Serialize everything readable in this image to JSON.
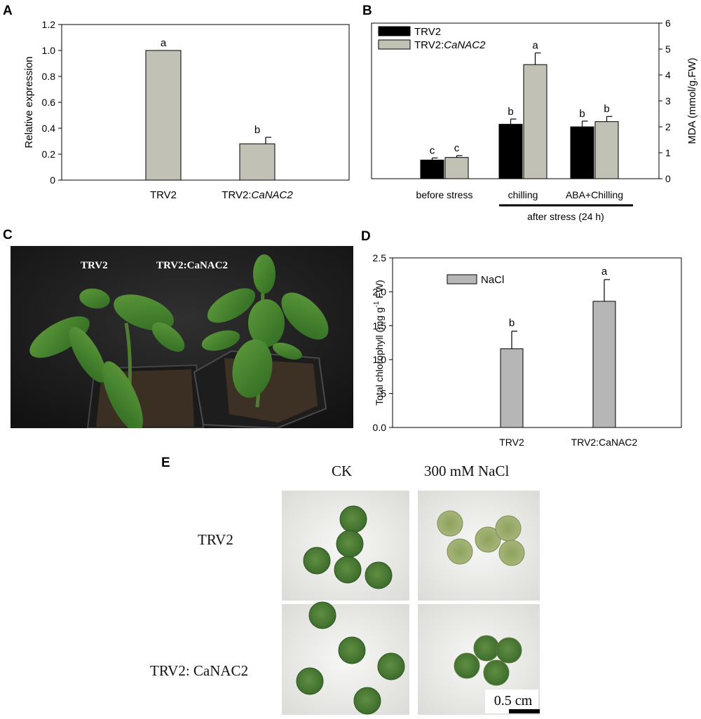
{
  "panels": {
    "a": "A",
    "b": "B",
    "c": "C",
    "d": "D",
    "e": "E"
  },
  "chart_data": [
    {
      "panel": "A",
      "type": "bar",
      "categories": [
        "TRV2",
        "TRV2:CaNAC2"
      ],
      "category_parts": [
        [
          "TRV2",
          ""
        ],
        [
          "TRV2:",
          "CaNAC2"
        ]
      ],
      "values": [
        1.0,
        0.28
      ],
      "errors": [
        0,
        0.05
      ],
      "letters": [
        "a",
        "b"
      ],
      "ylabel": "Relative expression",
      "ylim": [
        0,
        1.2
      ],
      "yticks": [
        0,
        0.2,
        0.4,
        0.6,
        0.8,
        1.0,
        1.2
      ],
      "ytick_labels": [
        "0",
        "0.2",
        "0.4",
        "0.6",
        "0.8",
        "1.0",
        "1.2"
      ],
      "bar_color": "#c1c2b5"
    },
    {
      "panel": "B",
      "type": "bar",
      "categories": [
        "before stress",
        "chilling",
        "ABA+Chilling"
      ],
      "group_label": "after stress (24 h)",
      "series": [
        {
          "name": "TRV2",
          "values": [
            0.72,
            2.1,
            2.0
          ],
          "errors": [
            0.08,
            0.2,
            0.22
          ],
          "letters": [
            "c",
            "b",
            "b"
          ],
          "color": "#000000"
        },
        {
          "name": "TRV2:CaNAC2",
          "name_parts": [
            "TRV2:",
            "CaNAC2"
          ],
          "values": [
            0.82,
            4.4,
            2.2
          ],
          "errors": [
            0.07,
            0.45,
            0.2
          ],
          "letters": [
            "c",
            "a",
            "b"
          ],
          "color": "#c1c2b5"
        }
      ],
      "ylabel": "MDA (mmol/g.FW)",
      "ylim": [
        0,
        6
      ],
      "yticks": [
        0,
        1,
        2,
        3,
        4,
        5,
        6
      ],
      "ytick_labels": [
        "0",
        "1",
        "2",
        "3",
        "4",
        "5",
        "6"
      ],
      "legend": "top-left"
    },
    {
      "panel": "D",
      "type": "bar",
      "categories": [
        "TRV2",
        "TRV2:CaNAC2"
      ],
      "series": [
        {
          "name": "NaCl",
          "values": [
            1.16,
            1.86
          ],
          "errors": [
            0.26,
            0.32
          ],
          "letters": [
            "b",
            "a"
          ],
          "color": "#b6b6b6"
        }
      ],
      "ylabel_parts": [
        "Total chlorophyll  (mg g",
        "-1",
        " FW)"
      ],
      "ylim": [
        0,
        2.5
      ],
      "yticks": [
        0,
        0.5,
        1.0,
        1.5,
        2.0,
        2.5
      ],
      "ytick_labels": [
        "0.0",
        ".5",
        "1.0",
        "1.5",
        "2.0",
        "2.5"
      ],
      "legend": "top-left"
    }
  ],
  "photo_c": {
    "label_left": "TRV2",
    "label_right": "TRV2:CaNAC2"
  },
  "photo_e": {
    "col_ck": "CK",
    "col_nacl": "300 mM NaCl",
    "row_trv2": "TRV2",
    "row_canac2": "TRV2: CaNAC2",
    "scale_bar": "0.5 cm"
  },
  "colors": {
    "leaf": "#3f7a2a",
    "leaf_yellow": "#b9c48a",
    "background_photo": "#1b1b1b",
    "dish": "#f2f2f0"
  }
}
